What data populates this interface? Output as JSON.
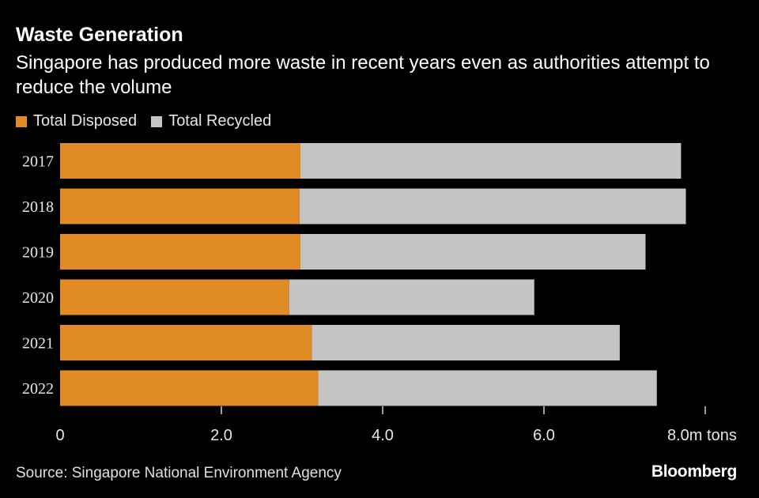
{
  "chart_data": {
    "type": "bar",
    "orientation": "horizontal",
    "stacked": true,
    "title": "Waste Generation",
    "subtitle": "Singapore has produced more waste in recent years even as authorities attempt to reduce the volume",
    "categories": [
      "2017",
      "2018",
      "2019",
      "2020",
      "2021",
      "2022"
    ],
    "series": [
      {
        "name": "Total Disposed",
        "color": "#e08b24",
        "values": [
          2.98,
          2.97,
          2.98,
          2.84,
          3.12,
          3.2
        ]
      },
      {
        "name": "Total Recycled",
        "color": "#c4c4c4",
        "values": [
          4.72,
          4.79,
          4.28,
          3.04,
          3.82,
          4.2
        ]
      }
    ],
    "xlim": [
      0,
      8
    ],
    "xticks": [
      0,
      2,
      4,
      6,
      8
    ],
    "xtick_labels": [
      "0",
      "2.0",
      "4.0",
      "6.0",
      "8.0m tons"
    ],
    "xlabel": "",
    "ylabel": "",
    "grid": false,
    "legend": "top-left"
  },
  "footer": {
    "source": "Source: Singapore National Environment Agency",
    "brand": "Bloomberg"
  }
}
